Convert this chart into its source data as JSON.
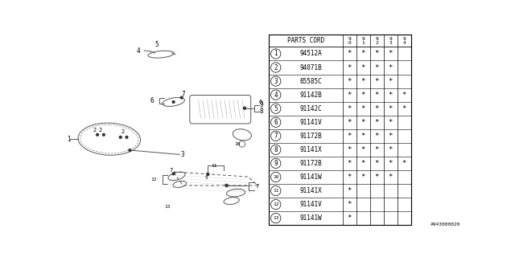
{
  "bg_color": "#ffffff",
  "rows": [
    {
      "num": 1,
      "part": "94512A",
      "cols": [
        "*",
        "*",
        "*",
        "*",
        ""
      ]
    },
    {
      "num": 2,
      "part": "94071B",
      "cols": [
        "*",
        "*",
        "*",
        "*",
        ""
      ]
    },
    {
      "num": 3,
      "part": "65585C",
      "cols": [
        "*",
        "*",
        "*",
        "*",
        ""
      ]
    },
    {
      "num": 4,
      "part": "91142B",
      "cols": [
        "*",
        "*",
        "*",
        "*",
        "*"
      ]
    },
    {
      "num": 5,
      "part": "91142C",
      "cols": [
        "*",
        "*",
        "*",
        "*",
        "*"
      ]
    },
    {
      "num": 6,
      "part": "91141V",
      "cols": [
        "*",
        "*",
        "*",
        "*",
        ""
      ]
    },
    {
      "num": 7,
      "part": "91172B",
      "cols": [
        "*",
        "*",
        "*",
        "*",
        ""
      ]
    },
    {
      "num": 8,
      "part": "91141X",
      "cols": [
        "*",
        "*",
        "*",
        "*",
        ""
      ]
    },
    {
      "num": 9,
      "part": "91172B",
      "cols": [
        "*",
        "*",
        "*",
        "*",
        "*"
      ]
    },
    {
      "num": 10,
      "part": "91141W",
      "cols": [
        "*",
        "*",
        "*",
        "*",
        ""
      ]
    },
    {
      "num": 11,
      "part": "91141X",
      "cols": [
        "*",
        "",
        "",
        "",
        ""
      ]
    },
    {
      "num": 12,
      "part": "91141V",
      "cols": [
        "*",
        "",
        "",
        "",
        ""
      ]
    },
    {
      "num": 13,
      "part": "91141W",
      "cols": [
        "*",
        "",
        "",
        "",
        ""
      ]
    }
  ],
  "footer": "A943000020"
}
